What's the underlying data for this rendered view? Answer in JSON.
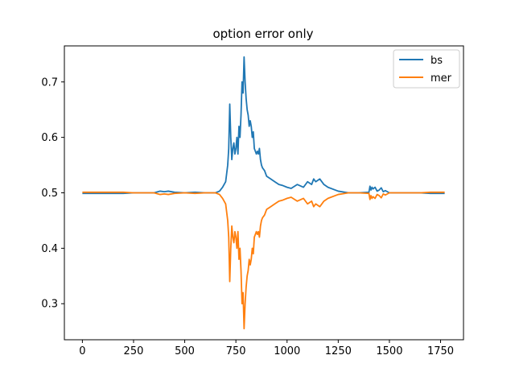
{
  "chart_data": {
    "type": "line",
    "title": "option error only",
    "xlabel": "",
    "ylabel": "",
    "xlim": [
      -88,
      1862
    ],
    "ylim": [
      0.235,
      0.765
    ],
    "xticks": [
      0,
      250,
      500,
      750,
      1000,
      1250,
      1500,
      1750
    ],
    "yticks": [
      0.3,
      0.4,
      0.5,
      0.6,
      0.7
    ],
    "ytick_labels": [
      "0.3",
      "0.4",
      "0.5",
      "0.6",
      "0.7"
    ],
    "legend": {
      "position": "top-right"
    },
    "series": [
      {
        "name": "bs",
        "color": "#1f77b4",
        "x": [
          0,
          100,
          200,
          250,
          300,
          350,
          380,
          400,
          420,
          450,
          500,
          550,
          600,
          650,
          670,
          685,
          700,
          710,
          715,
          720,
          725,
          730,
          735,
          740,
          745,
          750,
          755,
          760,
          765,
          770,
          775,
          780,
          785,
          790,
          795,
          800,
          805,
          810,
          815,
          820,
          825,
          830,
          835,
          840,
          845,
          850,
          855,
          860,
          865,
          870,
          875,
          880,
          890,
          900,
          920,
          940,
          960,
          980,
          1000,
          1020,
          1050,
          1080,
          1100,
          1120,
          1130,
          1140,
          1160,
          1180,
          1200,
          1250,
          1300,
          1350,
          1400,
          1405,
          1410,
          1415,
          1420,
          1430,
          1440,
          1450,
          1460,
          1470,
          1480,
          1500,
          1550,
          1600,
          1650,
          1700,
          1770
        ],
        "y": [
          0.499,
          0.499,
          0.499,
          0.5,
          0.5,
          0.5,
          0.503,
          0.502,
          0.503,
          0.501,
          0.5,
          0.501,
          0.5,
          0.5,
          0.503,
          0.51,
          0.52,
          0.55,
          0.58,
          0.66,
          0.6,
          0.56,
          0.58,
          0.59,
          0.57,
          0.58,
          0.6,
          0.57,
          0.62,
          0.6,
          0.64,
          0.7,
          0.68,
          0.745,
          0.7,
          0.67,
          0.65,
          0.64,
          0.62,
          0.63,
          0.62,
          0.6,
          0.61,
          0.58,
          0.575,
          0.57,
          0.575,
          0.57,
          0.58,
          0.56,
          0.55,
          0.545,
          0.54,
          0.53,
          0.525,
          0.52,
          0.515,
          0.513,
          0.51,
          0.508,
          0.515,
          0.51,
          0.52,
          0.515,
          0.525,
          0.52,
          0.525,
          0.515,
          0.51,
          0.503,
          0.5,
          0.5,
          0.501,
          0.512,
          0.505,
          0.51,
          0.507,
          0.51,
          0.503,
          0.505,
          0.509,
          0.502,
          0.504,
          0.5,
          0.5,
          0.5,
          0.5,
          0.499,
          0.499
        ]
      },
      {
        "name": "mer",
        "color": "#ff7f0e",
        "x": [
          0,
          100,
          200,
          250,
          300,
          350,
          380,
          400,
          420,
          450,
          500,
          550,
          600,
          650,
          670,
          685,
          700,
          710,
          715,
          720,
          725,
          730,
          735,
          740,
          745,
          750,
          755,
          760,
          765,
          770,
          775,
          780,
          785,
          790,
          795,
          800,
          805,
          810,
          815,
          820,
          825,
          830,
          835,
          840,
          845,
          850,
          855,
          860,
          865,
          870,
          875,
          880,
          890,
          900,
          920,
          940,
          960,
          980,
          1000,
          1020,
          1050,
          1080,
          1100,
          1120,
          1130,
          1140,
          1160,
          1180,
          1200,
          1250,
          1300,
          1350,
          1400,
          1405,
          1410,
          1415,
          1420,
          1430,
          1440,
          1450,
          1460,
          1470,
          1480,
          1500,
          1550,
          1600,
          1650,
          1700,
          1770
        ],
        "y": [
          0.501,
          0.501,
          0.501,
          0.5,
          0.5,
          0.5,
          0.497,
          0.498,
          0.497,
          0.499,
          0.5,
          0.499,
          0.5,
          0.5,
          0.497,
          0.49,
          0.48,
          0.45,
          0.42,
          0.34,
          0.4,
          0.44,
          0.42,
          0.41,
          0.43,
          0.42,
          0.4,
          0.43,
          0.38,
          0.4,
          0.36,
          0.3,
          0.32,
          0.255,
          0.3,
          0.33,
          0.35,
          0.36,
          0.38,
          0.37,
          0.38,
          0.4,
          0.39,
          0.42,
          0.425,
          0.43,
          0.425,
          0.43,
          0.42,
          0.44,
          0.45,
          0.455,
          0.46,
          0.47,
          0.475,
          0.48,
          0.485,
          0.487,
          0.49,
          0.492,
          0.485,
          0.49,
          0.48,
          0.485,
          0.475,
          0.48,
          0.475,
          0.485,
          0.49,
          0.497,
          0.5,
          0.5,
          0.499,
          0.488,
          0.495,
          0.49,
          0.493,
          0.49,
          0.497,
          0.495,
          0.491,
          0.498,
          0.496,
          0.5,
          0.5,
          0.5,
          0.5,
          0.501,
          0.501
        ]
      }
    ]
  }
}
